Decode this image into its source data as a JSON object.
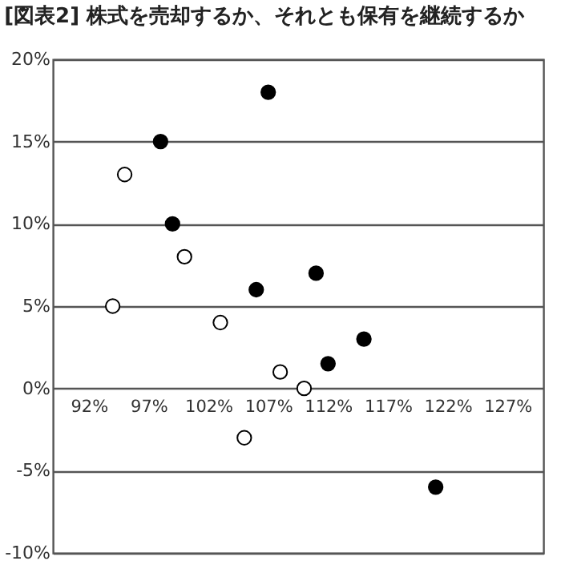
{
  "chart_data": {
    "type": "scatter",
    "title": "[図表2] 株式を売却するか、それとも保有を継続するか",
    "series": [
      {
        "color": "#000000",
        "x": [
          107,
          98,
          99,
          106,
          111,
          112,
          115,
          121
        ],
        "values": [
          18,
          15,
          10,
          6,
          7,
          1.5,
          3,
          -6
        ]
      },
      {
        "color": "#ffffff",
        "x": [
          95,
          94,
          100,
          103,
          108,
          110,
          105
        ],
        "values": [
          13,
          5,
          8,
          4,
          1,
          0,
          -3
        ]
      }
    ],
    "xlim": [
      89,
      130
    ],
    "xticks": [
      {
        "value": 92,
        "label": "92%"
      },
      {
        "value": 97,
        "label": "97%"
      },
      {
        "value": 102,
        "label": "102%"
      },
      {
        "value": 107,
        "label": "107%"
      },
      {
        "value": 112,
        "label": "112%"
      },
      {
        "value": 117,
        "label": "117%"
      },
      {
        "value": 122,
        "label": "122%"
      },
      {
        "value": 127,
        "label": "127%"
      }
    ],
    "ylim": [
      -10,
      20
    ],
    "yticks": [
      {
        "value": -10,
        "label": "-10%"
      },
      {
        "value": -5,
        "label": "-5%"
      },
      {
        "value": 0,
        "label": "0%"
      },
      {
        "value": 5,
        "label": "5%"
      },
      {
        "value": 10,
        "label": "10%"
      },
      {
        "value": 15,
        "label": "15%"
      },
      {
        "value": 20,
        "label": "20%"
      }
    ],
    "grid": "y",
    "marker": "circle"
  }
}
